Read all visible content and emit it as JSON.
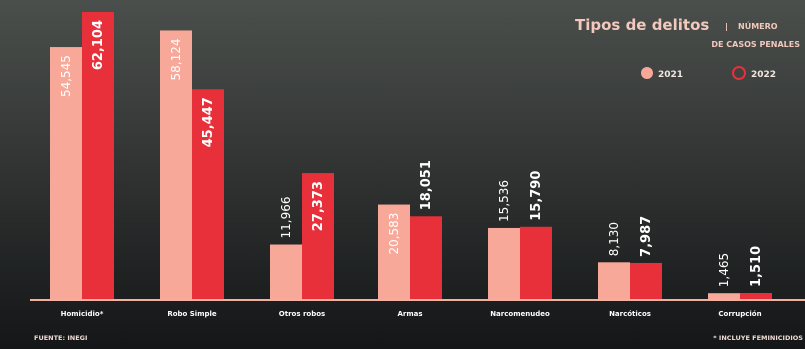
{
  "header": {
    "title": "Tipos de delitos",
    "title_sep": "|",
    "subtitle_line1": "NÚMERO",
    "subtitle_line2": "DE CASOS PENALES"
  },
  "footer": {
    "source": "FUENTE: INEGI",
    "note": "* INCLUYE FEMINICIDIOS"
  },
  "colors": {
    "series_2021": "#f7a898",
    "series_2022": "#e8303a",
    "background_top": "#4b4f4c",
    "background_bottom": "#141617",
    "baseline": "#f2b0a2"
  },
  "chart_data": {
    "type": "bar",
    "title": "Tipos de delitos | NÚMERO DE CASOS PENALES",
    "categories": [
      "Homicidio*",
      "Robo Simple",
      "Otros robos",
      "Armas",
      "Narcomenudeo",
      "Narcóticos",
      "Corrupción"
    ],
    "series": [
      {
        "name": "2021",
        "values": [
          54545,
          58124,
          11966,
          20583,
          15536,
          8130,
          1465
        ],
        "labels": [
          "54,545",
          "58,124",
          "11,966",
          "20,583",
          "15,536",
          "8,130",
          "1,465"
        ]
      },
      {
        "name": "2022",
        "values": [
          62104,
          45447,
          27373,
          18051,
          15790,
          7987,
          1510
        ],
        "labels": [
          "62,104",
          "45,447",
          "27,373",
          "18,051",
          "15,790",
          "7,987",
          "1,510"
        ]
      }
    ],
    "ylim": [
      0,
      65000
    ],
    "grid": false,
    "legend_position": "top-right"
  }
}
